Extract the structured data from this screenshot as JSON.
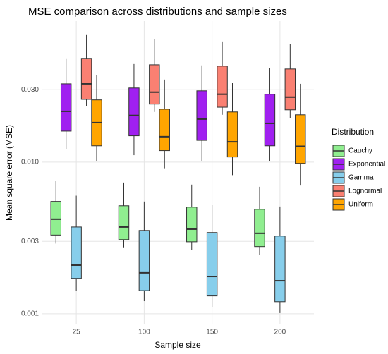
{
  "chart_data": {
    "type": "boxplot",
    "title": "MSE comparison across distributions and sample sizes",
    "x_label": "Sample size",
    "y_label": "Mean square error (MSE)",
    "legend_title": "Distribution",
    "legend_position": "right",
    "log_y": true,
    "grid": true,
    "categories": [
      "25",
      "100",
      "150",
      "200"
    ],
    "ylim": [
      0.00085,
      0.085
    ],
    "yticks": [
      {
        "value": 0.03,
        "label": "0.030"
      },
      {
        "value": 0.01,
        "label": "0.010"
      },
      0.003,
      0.001
    ],
    "series": [
      {
        "name": "Cauchy",
        "color": "#90ee90",
        "values": [
          {
            "min": 0.0029,
            "q1": 0.0033,
            "median": 0.0042,
            "q3": 0.0055,
            "max": 0.0075
          },
          {
            "min": 0.00274,
            "q1": 0.00308,
            "median": 0.00373,
            "q3": 0.00515,
            "max": 0.00733
          },
          {
            "min": 0.00262,
            "q1": 0.00298,
            "median": 0.00361,
            "q3": 0.00504,
            "max": 0.0071
          },
          {
            "min": 0.00243,
            "q1": 0.00277,
            "median": 0.00339,
            "q3": 0.00488,
            "max": 0.00687
          }
        ]
      },
      {
        "name": "Exponential",
        "color": "#a020f0",
        "values": [
          {
            "min": 0.0121,
            "q1": 0.016,
            "median": 0.0216,
            "q3": 0.0328,
            "max": 0.0483
          },
          {
            "min": 0.0111,
            "q1": 0.0149,
            "median": 0.0203,
            "q3": 0.0308,
            "max": 0.0443
          },
          {
            "min": 0.0101,
            "q1": 0.0139,
            "median": 0.0192,
            "q3": 0.0295,
            "max": 0.0434
          },
          {
            "min": 0.0101,
            "q1": 0.0128,
            "median": 0.018,
            "q3": 0.028,
            "max": 0.0416
          }
        ]
      },
      {
        "name": "Gamma",
        "color": "#87ceeb",
        "values": [
          {
            "min": 0.00142,
            "q1": 0.00171,
            "median": 0.00209,
            "q3": 0.00373,
            "max": 0.006
          },
          {
            "min": 0.00121,
            "q1": 0.00142,
            "median": 0.00186,
            "q3": 0.00354,
            "max": 0.00549
          },
          {
            "min": 0.00111,
            "q1": 0.00131,
            "median": 0.00176,
            "q3": 0.00343,
            "max": 0.0052
          },
          {
            "min": 0.00101,
            "q1": 0.0012,
            "median": 0.00165,
            "q3": 0.00325,
            "max": 0.00509
          }
        ]
      },
      {
        "name": "Lognormal",
        "color": "#fa8072",
        "values": [
          {
            "min": 0.0233,
            "q1": 0.0259,
            "median": 0.0328,
            "q3": 0.0483,
            "max": 0.0695
          },
          {
            "min": 0.0214,
            "q1": 0.0241,
            "median": 0.0289,
            "q3": 0.0438,
            "max": 0.0645
          },
          {
            "min": 0.0205,
            "q1": 0.023,
            "median": 0.028,
            "q3": 0.0429,
            "max": 0.0624
          },
          {
            "min": 0.0194,
            "q1": 0.0221,
            "median": 0.0268,
            "q3": 0.0411,
            "max": 0.0598
          }
        ]
      },
      {
        "name": "Uniform",
        "color": "#ffa500",
        "values": [
          {
            "min": 0.0101,
            "q1": 0.0128,
            "median": 0.0182,
            "q3": 0.0257,
            "max": 0.0373
          },
          {
            "min": 0.0091,
            "q1": 0.0119,
            "median": 0.0147,
            "q3": 0.0223,
            "max": 0.035
          },
          {
            "min": 0.0082,
            "q1": 0.0108,
            "median": 0.0136,
            "q3": 0.0214,
            "max": 0.0332
          },
          {
            "min": 0.007,
            "q1": 0.0098,
            "median": 0.0127,
            "q3": 0.0205,
            "max": 0.0328
          }
        ]
      }
    ]
  }
}
